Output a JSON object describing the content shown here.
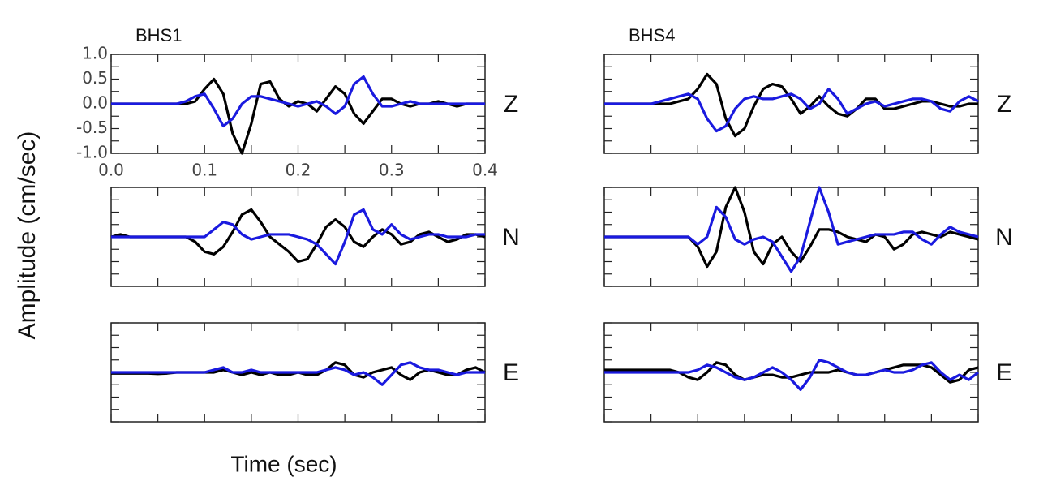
{
  "chart_data": [
    {
      "type": "line",
      "title": "BHS1",
      "label": "Z",
      "ylabel": "Amplitude (cm/sec)",
      "xlabel": "Time (sec)",
      "x": [
        0,
        0.01,
        0.02,
        0.03,
        0.04,
        0.05,
        0.06,
        0.07,
        0.08,
        0.09,
        0.1,
        0.11,
        0.12,
        0.13,
        0.14,
        0.15,
        0.16,
        0.17,
        0.18,
        0.19,
        0.2,
        0.21,
        0.22,
        0.23,
        0.24,
        0.25,
        0.26,
        0.27,
        0.28,
        0.29,
        0.3,
        0.31,
        0.32,
        0.33,
        0.34,
        0.35,
        0.36,
        0.37,
        0.38,
        0.39,
        0.4
      ],
      "xlim": [
        0,
        0.4
      ],
      "ylim": [
        -1,
        1
      ],
      "xticks": [
        {
          "value": 0,
          "label": "0.0"
        },
        0.1,
        0.2,
        0.3,
        0.4
      ],
      "yticks": [
        {
          "value": -1,
          "label": "-1.0"
        },
        -0.5,
        {
          "value": 0,
          "label": "0.0"
        },
        0.5,
        {
          "value": 1,
          "label": "1.0"
        }
      ],
      "series": [
        {
          "color": "#000000",
          "values": [
            0,
            0,
            0,
            0,
            0,
            0,
            0,
            0,
            0,
            0.05,
            0.3,
            0.5,
            0.2,
            -0.6,
            -1.0,
            -0.4,
            0.4,
            0.45,
            0.1,
            -0.05,
            0.05,
            0,
            -0.15,
            0.1,
            0.35,
            0.2,
            -0.2,
            -0.4,
            -0.15,
            0.1,
            0.1,
            0,
            -0.05,
            0,
            0,
            0.05,
            0,
            -0.05,
            0,
            0,
            0
          ]
        },
        {
          "color": "#1a1adf",
          "values": [
            0,
            0,
            0,
            0,
            0,
            0,
            0,
            0,
            0.05,
            0.15,
            0.2,
            -0.1,
            -0.45,
            -0.3,
            0,
            0.15,
            0.15,
            0.1,
            0.05,
            0,
            -0.05,
            0,
            0.05,
            -0.05,
            -0.2,
            -0.05,
            0.4,
            0.55,
            0.2,
            -0.05,
            -0.05,
            0,
            0.05,
            0,
            0,
            0,
            0,
            0,
            0,
            0,
            0
          ]
        }
      ]
    },
    {
      "type": "line",
      "title": "BHS4",
      "label": "Z",
      "x": [
        0,
        0.01,
        0.02,
        0.03,
        0.04,
        0.05,
        0.06,
        0.07,
        0.08,
        0.09,
        0.1,
        0.11,
        0.12,
        0.13,
        0.14,
        0.15,
        0.16,
        0.17,
        0.18,
        0.19,
        0.2,
        0.21,
        0.22,
        0.23,
        0.24,
        0.25,
        0.26,
        0.27,
        0.28,
        0.29,
        0.3,
        0.31,
        0.32,
        0.33,
        0.34,
        0.35,
        0.36,
        0.37,
        0.38,
        0.39,
        0.4
      ],
      "xlim": [
        0,
        0.4
      ],
      "ylim": [
        -1,
        1
      ],
      "series": [
        {
          "color": "#000000",
          "values": [
            0,
            0,
            0,
            0,
            0,
            0,
            0,
            0,
            0.05,
            0.1,
            0.3,
            0.6,
            0.4,
            -0.3,
            -0.65,
            -0.5,
            -0.05,
            0.3,
            0.4,
            0.35,
            0.1,
            -0.2,
            -0.05,
            0.15,
            -0.05,
            -0.2,
            -0.25,
            -0.1,
            0.1,
            0.1,
            -0.1,
            -0.1,
            -0.05,
            0,
            0.05,
            0.05,
            0,
            -0.05,
            -0.05,
            0,
            0
          ]
        },
        {
          "color": "#1a1adf",
          "values": [
            0,
            0,
            0,
            0,
            0,
            0,
            0.05,
            0.1,
            0.15,
            0.2,
            0.1,
            -0.3,
            -0.55,
            -0.45,
            -0.1,
            0.1,
            0.15,
            0.1,
            0.1,
            0.15,
            0.2,
            0.1,
            -0.1,
            0,
            0.3,
            0.1,
            -0.2,
            -0.1,
            0,
            0.05,
            -0.05,
            0,
            0.05,
            0.1,
            0.1,
            0.05,
            -0.1,
            -0.15,
            0.05,
            0.15,
            0.05
          ]
        }
      ]
    },
    {
      "type": "line",
      "label": "N",
      "x": [
        0,
        0.01,
        0.02,
        0.03,
        0.04,
        0.05,
        0.06,
        0.07,
        0.08,
        0.09,
        0.1,
        0.11,
        0.12,
        0.13,
        0.14,
        0.15,
        0.16,
        0.17,
        0.18,
        0.19,
        0.2,
        0.21,
        0.22,
        0.23,
        0.24,
        0.25,
        0.26,
        0.27,
        0.28,
        0.29,
        0.3,
        0.31,
        0.32,
        0.33,
        0.34,
        0.35,
        0.36,
        0.37,
        0.38,
        0.39,
        0.4
      ],
      "xlim": [
        0,
        0.4
      ],
      "ylim": [
        -1,
        1
      ],
      "series": [
        {
          "color": "#000000",
          "values": [
            0,
            0.05,
            0,
            0,
            0,
            0,
            0,
            0,
            0,
            -0.1,
            -0.3,
            -0.35,
            -0.2,
            0.1,
            0.45,
            0.55,
            0.3,
            0,
            -0.15,
            -0.3,
            -0.5,
            -0.45,
            -0.15,
            0.2,
            0.35,
            0.2,
            -0.1,
            -0.2,
            0,
            0.15,
            0.05,
            -0.15,
            -0.1,
            0.05,
            0.1,
            0,
            -0.1,
            -0.05,
            0.05,
            0.05,
            0
          ]
        },
        {
          "color": "#1a1adf",
          "values": [
            0,
            0,
            0,
            0,
            0,
            0,
            0,
            0,
            0,
            0,
            0,
            0.15,
            0.3,
            0.25,
            0.05,
            -0.05,
            0,
            0.05,
            0.05,
            0.05,
            0,
            -0.05,
            -0.15,
            -0.35,
            -0.55,
            -0.1,
            0.45,
            0.55,
            0.15,
            0.05,
            0.25,
            0.05,
            -0.05,
            0,
            0.05,
            0.05,
            0,
            0,
            0,
            0.05,
            0.05
          ]
        }
      ]
    },
    {
      "type": "line",
      "label": "N",
      "x": [
        0,
        0.01,
        0.02,
        0.03,
        0.04,
        0.05,
        0.06,
        0.07,
        0.08,
        0.09,
        0.1,
        0.11,
        0.12,
        0.13,
        0.14,
        0.15,
        0.16,
        0.17,
        0.18,
        0.19,
        0.2,
        0.21,
        0.22,
        0.23,
        0.24,
        0.25,
        0.26,
        0.27,
        0.28,
        0.29,
        0.3,
        0.31,
        0.32,
        0.33,
        0.34,
        0.35,
        0.36,
        0.37,
        0.38,
        0.39,
        0.4
      ],
      "xlim": [
        0,
        0.4
      ],
      "ylim": [
        -1,
        1
      ],
      "series": [
        {
          "color": "#000000",
          "values": [
            0,
            0,
            0,
            0,
            0,
            0,
            0,
            0,
            0,
            0,
            -0.2,
            -0.6,
            -0.3,
            0.6,
            1.0,
            0.5,
            -0.3,
            -0.55,
            -0.15,
            0,
            -0.3,
            -0.5,
            -0.2,
            0.15,
            0.15,
            0.1,
            0,
            -0.05,
            -0.1,
            0.05,
            0,
            -0.25,
            -0.15,
            0.05,
            0.1,
            0.05,
            0,
            0.1,
            0.05,
            0,
            -0.05
          ]
        },
        {
          "color": "#1a1adf",
          "values": [
            0,
            0,
            0,
            0,
            0,
            0,
            0,
            0,
            0,
            0,
            -0.15,
            0,
            0.6,
            0.4,
            -0.05,
            -0.15,
            -0.05,
            0,
            -0.1,
            -0.4,
            -0.7,
            -0.4,
            0.3,
            1.0,
            0.5,
            -0.15,
            -0.1,
            -0.05,
            0,
            0.05,
            0.05,
            0.05,
            0.1,
            0.1,
            -0.05,
            -0.15,
            0.05,
            0.2,
            0.1,
            0.05,
            0
          ]
        }
      ]
    },
    {
      "type": "line",
      "label": "E",
      "x": [
        0,
        0.01,
        0.02,
        0.03,
        0.04,
        0.05,
        0.06,
        0.07,
        0.08,
        0.09,
        0.1,
        0.11,
        0.12,
        0.13,
        0.14,
        0.15,
        0.16,
        0.17,
        0.18,
        0.19,
        0.2,
        0.21,
        0.22,
        0.23,
        0.24,
        0.25,
        0.26,
        0.27,
        0.28,
        0.29,
        0.3,
        0.31,
        0.32,
        0.33,
        0.34,
        0.35,
        0.36,
        0.37,
        0.38,
        0.39,
        0.4
      ],
      "xlim": [
        0,
        0.4
      ],
      "ylim": [
        -1,
        1
      ],
      "series": [
        {
          "color": "#000000",
          "values": [
            -0.02,
            -0.02,
            -0.02,
            -0.02,
            -0.02,
            -0.03,
            -0.02,
            0,
            0,
            0,
            0,
            0,
            0.05,
            0,
            -0.05,
            0,
            -0.05,
            0,
            -0.05,
            -0.05,
            0,
            -0.05,
            -0.05,
            0.05,
            0.2,
            0.15,
            -0.05,
            -0.1,
            0,
            0.05,
            0.1,
            -0.05,
            -0.15,
            0,
            0.05,
            0,
            -0.05,
            -0.05,
            0.05,
            0.1,
            0
          ]
        },
        {
          "color": "#1a1adf",
          "values": [
            0,
            0,
            0,
            0,
            0,
            0,
            0,
            0,
            0,
            0,
            0,
            0.05,
            0.1,
            0,
            0,
            0.05,
            0,
            0,
            0,
            0,
            0,
            0,
            0,
            0.05,
            0.1,
            0.05,
            -0.05,
            0,
            -0.1,
            -0.25,
            -0.05,
            0.15,
            0.2,
            0.1,
            0.05,
            0.05,
            0,
            -0.05,
            0,
            0,
            0
          ]
        }
      ]
    },
    {
      "type": "line",
      "label": "E",
      "x": [
        0,
        0.01,
        0.02,
        0.03,
        0.04,
        0.05,
        0.06,
        0.07,
        0.08,
        0.09,
        0.1,
        0.11,
        0.12,
        0.13,
        0.14,
        0.15,
        0.16,
        0.17,
        0.18,
        0.19,
        0.2,
        0.21,
        0.22,
        0.23,
        0.24,
        0.25,
        0.26,
        0.27,
        0.28,
        0.29,
        0.3,
        0.31,
        0.32,
        0.33,
        0.34,
        0.35,
        0.36,
        0.37,
        0.38,
        0.39,
        0.4
      ],
      "xlim": [
        0,
        0.4
      ],
      "ylim": [
        -1,
        1
      ],
      "series": [
        {
          "color": "#000000",
          "values": [
            0.05,
            0.05,
            0.05,
            0.05,
            0.05,
            0.05,
            0.05,
            0.05,
            0,
            -0.1,
            -0.15,
            0,
            0.2,
            0.15,
            -0.05,
            -0.15,
            -0.1,
            -0.05,
            -0.05,
            -0.1,
            -0.1,
            -0.05,
            0,
            0,
            0,
            0.05,
            0,
            -0.05,
            -0.05,
            0,
            0.05,
            0.1,
            0.15,
            0.15,
            0.15,
            0.1,
            -0.05,
            -0.2,
            -0.15,
            0.05,
            0.1
          ]
        },
        {
          "color": "#1a1adf",
          "values": [
            0,
            0,
            0,
            0,
            0,
            0,
            0,
            0,
            0,
            0,
            0.05,
            0.15,
            0.1,
            0,
            -0.1,
            -0.15,
            -0.1,
            0,
            0.1,
            0,
            -0.15,
            -0.35,
            -0.1,
            0.25,
            0.2,
            0.1,
            0,
            -0.05,
            -0.05,
            0,
            0.05,
            0,
            0,
            0.05,
            0.15,
            0.2,
            0,
            -0.15,
            -0.05,
            -0.15,
            0
          ]
        }
      ]
    }
  ]
}
